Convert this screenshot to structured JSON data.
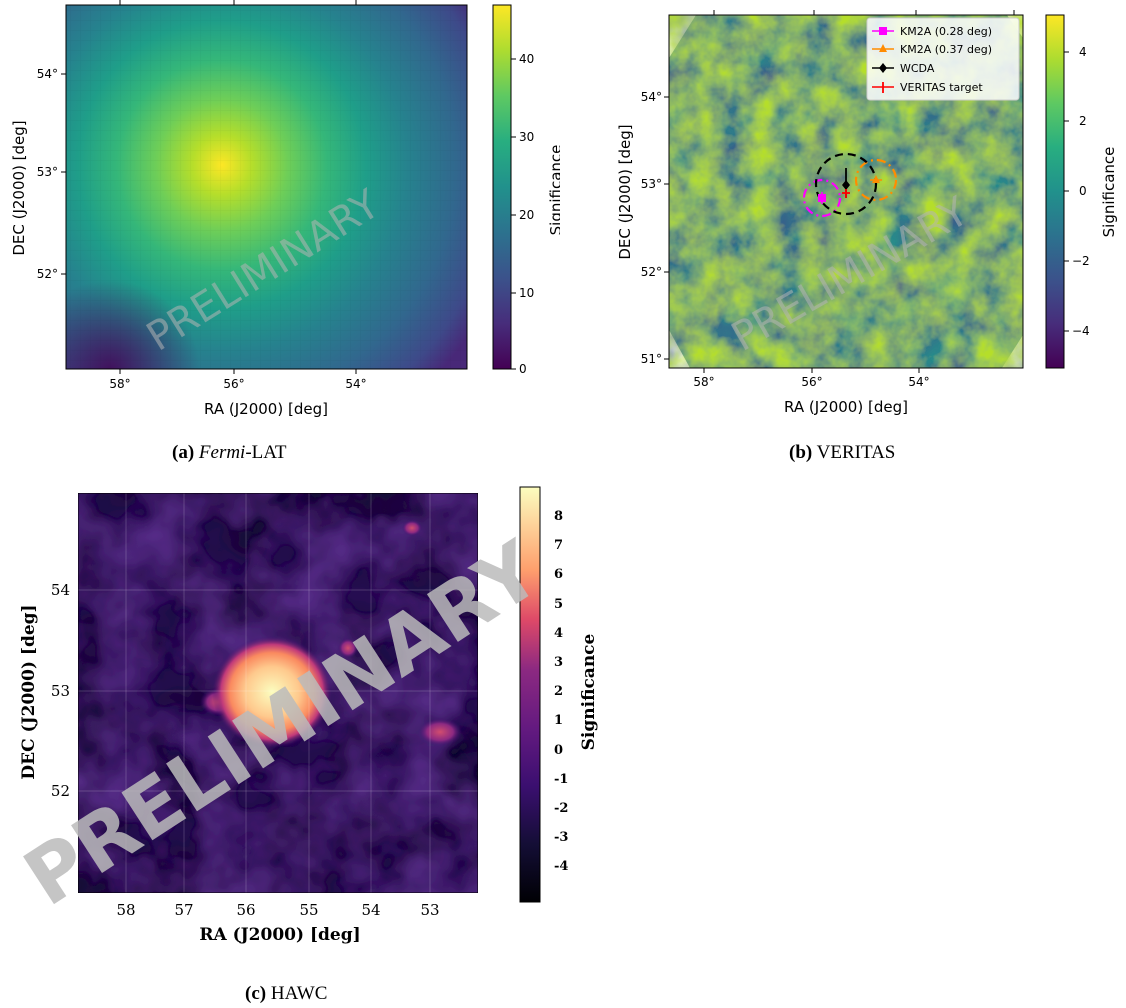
{
  "panels": {
    "a": {
      "caption_tag": "(a)",
      "caption_italic": "Fermi",
      "caption_rest": "-LAT",
      "xlabel": "RA (J2000)  [deg]",
      "ylabel": "DEC (J2000) [deg]",
      "cbar_label": "Significance",
      "watermark": "PRELIMINARY",
      "xticks": [
        "58°",
        "56°",
        "54°"
      ],
      "yticks": [
        "54°",
        "53°",
        "52°"
      ],
      "cticks": [
        "0",
        "10",
        "20",
        "30",
        "40"
      ]
    },
    "b": {
      "caption_tag": "(b)",
      "caption_rest": "VERITAS",
      "xlabel": "RA (J2000)  [deg]",
      "ylabel": "DEC (J2000) [deg]",
      "cbar_label": "Significance",
      "watermark": "PRELIMINARY",
      "xticks": [
        "58°",
        "56°",
        "54°"
      ],
      "yticks": [
        "54°",
        "53°",
        "52°",
        "51°"
      ],
      "cticks": [
        "4",
        "2",
        "0",
        "−2",
        "−4"
      ],
      "legend": [
        "KM2A (0.28 deg)",
        "KM2A (0.37 deg)",
        "WCDA",
        "VERITAS target"
      ]
    },
    "c": {
      "caption_tag": "(c)",
      "caption_rest": "HAWC",
      "xlabel": "RA (J2000) [deg]",
      "ylabel": "DEC (J2000) [deg]",
      "cbar_label": "Significance",
      "watermark": "PRELIMINARY",
      "xticks": [
        "58",
        "57",
        "56",
        "55",
        "54",
        "53"
      ],
      "yticks": [
        "54",
        "53",
        "52"
      ],
      "cticks": [
        "8",
        "7",
        "6",
        "5",
        "4",
        "3",
        "2",
        "1",
        "0",
        "-1",
        "-2",
        "-3",
        "-4"
      ]
    }
  },
  "chart_data": [
    {
      "type": "heatmap",
      "panel": "(a) Fermi-LAT",
      "xlabel": "RA (J2000)  [deg]",
      "ylabel": "DEC (J2000) [deg]",
      "colorbar_label": "Significance",
      "colormap": "viridis",
      "xlim": [
        58.6,
        52.3
      ],
      "ylim": [
        51.05,
        54.6
      ],
      "zlim": [
        0,
        46
      ],
      "peak": {
        "ra": 55.2,
        "dec": 53.05,
        "significance": 46
      },
      "watermark": "PRELIMINARY"
    },
    {
      "type": "heatmap",
      "panel": "(b) VERITAS",
      "xlabel": "RA (J2000)  [deg]",
      "ylabel": "DEC (J2000) [deg]",
      "colorbar_label": "Significance",
      "colormap": "viridis",
      "xlim": [
        58.6,
        52.4
      ],
      "ylim": [
        50.9,
        54.9
      ],
      "zlim": [
        -5,
        5
      ],
      "legend_position": "top-right",
      "markers": [
        {
          "name": "KM2A (0.28 deg)",
          "color": "#ff00ff",
          "ra": 55.85,
          "dec": 52.87,
          "radius_deg": 0.28,
          "marker": "square"
        },
        {
          "name": "KM2A (0.37 deg)",
          "color": "#ff8c00",
          "ra": 54.8,
          "dec": 53.07,
          "radius_deg": 0.37,
          "marker": "triangle"
        },
        {
          "name": "WCDA",
          "color": "#000000",
          "ra": 55.35,
          "dec": 52.98,
          "radius_deg": 0.55,
          "marker": "diamond"
        },
        {
          "name": "VERITAS target",
          "color": "#ff0000",
          "ra": 55.35,
          "dec": 52.9,
          "marker": "plus"
        }
      ],
      "watermark": "PRELIMINARY"
    },
    {
      "type": "heatmap",
      "panel": "(c) HAWC",
      "xlabel": "RA (J2000) [deg]",
      "ylabel": "DEC (J2000) [deg]",
      "colorbar_label": "Significance",
      "colormap": "magma",
      "xlim": [
        58.9,
        52.2
      ],
      "ylim": [
        51.0,
        55.0
      ],
      "zlim": [
        -5,
        9
      ],
      "grid": true,
      "peak": {
        "ra": 55.6,
        "dec": 53.0,
        "significance": 9
      },
      "watermark": "PRELIMINARY"
    }
  ],
  "colors": {
    "viridis_top": "#fde725",
    "viridis_bottom": "#440154",
    "magma_top": "#fcfdbf",
    "magma_bottom": "#000004",
    "km2a_028": "#ff00ff",
    "km2a_037": "#ff8c00",
    "wcda": "#000000",
    "veritas_target": "#ff0000"
  }
}
